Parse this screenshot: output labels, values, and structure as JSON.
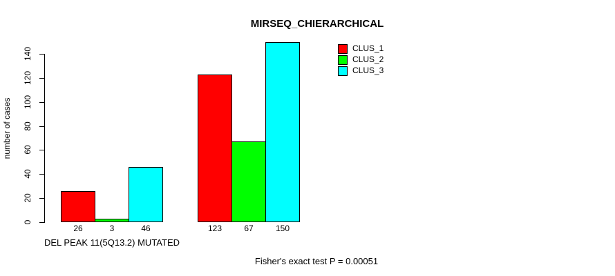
{
  "chart_data": {
    "type": "bar",
    "title": "MIRSEQ_CHIERARCHICAL",
    "ylabel": "number of cases",
    "xlabel": "",
    "ylim": [
      0,
      150
    ],
    "yticks": [
      0,
      20,
      40,
      60,
      80,
      100,
      120,
      140
    ],
    "grid": false,
    "bar_value_labels_visible": true,
    "legend_position": "top-right",
    "categories": [
      "DEL PEAK 11(5Q13.2) MUTATED",
      ""
    ],
    "series": [
      {
        "name": "CLUS_1",
        "color": "#FF0000",
        "values": [
          26,
          123
        ]
      },
      {
        "name": "CLUS_2",
        "color": "#00FF00",
        "values": [
          3,
          67
        ]
      },
      {
        "name": "CLUS_3",
        "color": "#00FFFF",
        "values": [
          46,
          150
        ]
      }
    ],
    "annotation": "Fisher's exact test P = 0.00051"
  }
}
